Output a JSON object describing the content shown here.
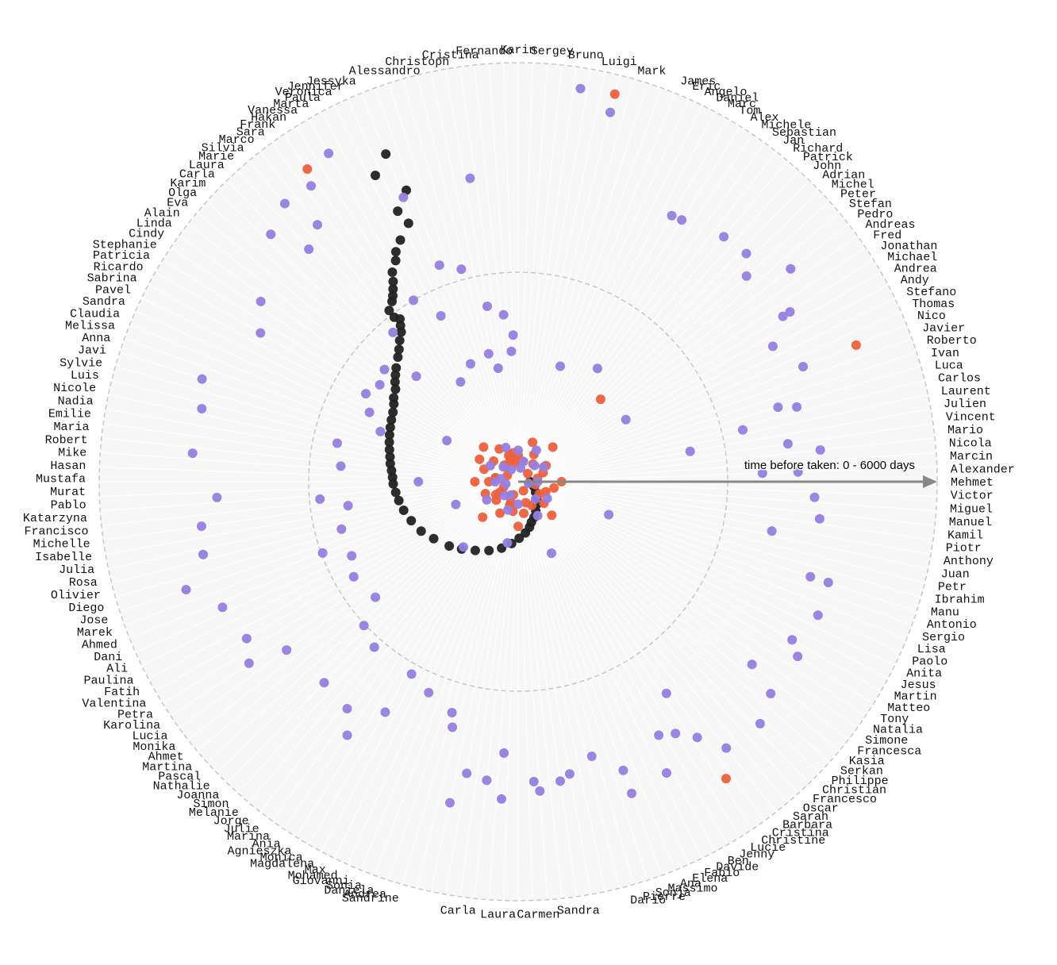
{
  "chart_data": {
    "type": "scatter",
    "subtype": "radial",
    "title": "",
    "radial_axis": {
      "label": "time before taken: 0 - 6000 days",
      "min": 0,
      "max": 6000,
      "rings": [
        3000,
        6000
      ],
      "ring_style": "dashed"
    },
    "legend": "none",
    "colors": {
      "series_black": "#222222",
      "series_orange": "#ee5f3a",
      "series_purple": "#9580e0",
      "ring": "#c8c8c8",
      "background_disk": "#f7f7f7",
      "axis_arrow": "#888888"
    },
    "angular_names_left": [
      "Jessyka",
      "Jennifer",
      "Veronica",
      "Paula",
      "Marta",
      "Vanessa",
      "Hakan",
      "Frank",
      "Sara",
      "Marco",
      "Silvia",
      "Marie",
      "Laura",
      "Carla",
      "Karim",
      "Olga",
      "Eva",
      "Alain",
      "Linda",
      "Cindy",
      "Stephanie",
      "Patricia",
      "Ricardo",
      "Sabrina",
      "Pavel",
      "Sandra",
      "Claudia",
      "Melissa",
      "Anna",
      "Javi",
      "Sylvie",
      "Luis",
      "Nicole",
      "Nadia",
      "Emilie",
      "Maria",
      "Robert",
      "Mike",
      "Hasan",
      "Mustafa",
      "Murat",
      "Pablo",
      "Katarzyna",
      "Francisco",
      "Michelle",
      "Isabelle",
      "Julia",
      "Rosa",
      "Olivier",
      "Diego",
      "Jose",
      "Marek",
      "Ahmed",
      "Dani",
      "Ali",
      "Paulina",
      "Fatih",
      "Valentina",
      "Petra",
      "Karolina",
      "Lucia",
      "Monika",
      "Ahmet",
      "Martina",
      "Pascal",
      "Nathalie",
      "Joanna",
      "Simon",
      "Melanie",
      "Jorge",
      "Julie",
      "Marina",
      "Ania",
      "Agnieszka",
      "Monica",
      "Magdalena",
      "Max",
      "Mohamed",
      "Giovanni",
      "Sonia",
      "Daniela",
      "Andrea",
      "Sandrine"
    ],
    "angular_names_right": [
      "James",
      "Eric",
      "Angelo",
      "Daniel",
      "Marc",
      "Tom",
      "Alex",
      "Michele",
      "Sebastian",
      "Jan",
      "Richard",
      "Patrick",
      "John",
      "Adrian",
      "Michel",
      "Peter",
      "Stefan",
      "Pedro",
      "Andreas",
      "Fred",
      "Jonathan",
      "Michael",
      "Andrea",
      "Andy",
      "Stefano",
      "Thomas",
      "Nico",
      "Javier",
      "Roberto",
      "Ivan",
      "Luca",
      "Carlos",
      "Laurent",
      "Julien",
      "Vincent",
      "Mario",
      "Nicola",
      "Marcin",
      "Alexander",
      "Mehmet",
      "Victor",
      "Miguel",
      "Manuel",
      "Kamil",
      "Piotr",
      "Anthony",
      "Juan",
      "Petr",
      "Ibrahim",
      "Manu",
      "Antonio",
      "Sergio",
      "Lisa",
      "Paolo",
      "Anita",
      "Jesus",
      "Martin",
      "Matteo",
      "Tony",
      "Natalia",
      "Simone",
      "Francesca",
      "Kasia",
      "Serkan",
      "Philippe",
      "Christian",
      "Francesco",
      "Oscar",
      "Sarah",
      "Barbara",
      "Cristina",
      "Christine",
      "Lucie",
      "Jenny",
      "Ben",
      "Davide",
      "Fabio",
      "Elena",
      "Ana",
      "Massimo",
      "Sonja",
      "Pierre",
      "Dario"
    ],
    "angular_names_top": [
      "Alessandro",
      "Christoph",
      "Cristina",
      "Fernando",
      "Karin",
      "Sergey",
      "Bruno",
      "Luigi",
      "Mark"
    ],
    "angular_names_bottom": [
      "Sandra",
      "Carmen",
      "Laura",
      "Carla"
    ],
    "series": [
      {
        "name": "",
        "color_key": "series_black",
        "points": [
          [
            -22,
            5060
          ],
          [
            -25,
            4840
          ],
          [
            -21,
            4470
          ],
          [
            -24,
            4240
          ],
          [
            -23,
            4020
          ],
          [
            -26,
            3850
          ],
          [
            -28,
            3730
          ],
          [
            -29,
            3620
          ],
          [
            -31,
            3500
          ],
          [
            -32,
            3380
          ],
          [
            -33,
            3290
          ],
          [
            -34,
            3210
          ],
          [
            -35,
            3150
          ],
          [
            -37,
            3070
          ],
          [
            -37,
            2950
          ],
          [
            -36,
            2880
          ],
          [
            -37,
            2800
          ],
          [
            -38,
            2720
          ],
          [
            -40,
            2640
          ],
          [
            -42,
            2550
          ],
          [
            -44,
            2480
          ],
          [
            -47,
            2390
          ],
          [
            -49,
            2330
          ],
          [
            -51,
            2270
          ],
          [
            -53,
            2200
          ],
          [
            -56,
            2150
          ],
          [
            -58,
            2100
          ],
          [
            -61,
            2050
          ],
          [
            -64,
            2020
          ],
          [
            -67,
            1990
          ],
          [
            -70,
            1960
          ],
          [
            -73,
            1930
          ],
          [
            -76,
            1900
          ],
          [
            -79,
            1870
          ],
          [
            -82,
            1850
          ],
          [
            -85,
            1820
          ],
          [
            -88,
            1800
          ],
          [
            -91,
            1790
          ],
          [
            -95,
            1760
          ],
          [
            -99,
            1730
          ],
          [
            -104,
            1690
          ],
          [
            -110,
            1630
          ],
          [
            -117,
            1560
          ],
          [
            -124,
            1460
          ],
          [
            -133,
            1350
          ],
          [
            -140,
            1260
          ],
          [
            -148,
            1160
          ],
          [
            -157,
            1070
          ],
          [
            -166,
            980
          ],
          [
            -174,
            890
          ],
          [
            -181,
            810
          ],
          [
            -188,
            740
          ],
          [
            -194,
            670
          ],
          [
            -198,
            610
          ],
          [
            -204,
            560
          ],
          [
            -211,
            490
          ],
          [
            -219,
            420
          ],
          [
            -228,
            360
          ],
          [
            -239,
            290
          ],
          [
            -254,
            230
          ],
          [
            -270,
            170
          ]
        ]
      },
      {
        "name": "",
        "color_key": "series_orange",
        "points": [
          [
            14,
            5720
          ],
          [
            -34,
            5400
          ],
          [
            68,
            5220
          ],
          [
            145,
            5190
          ],
          [
            45,
            1670
          ],
          [
            -20,
            330
          ],
          [
            10,
            300
          ],
          [
            40,
            330
          ],
          [
            80,
            280
          ],
          [
            120,
            350
          ],
          [
            160,
            320
          ],
          [
            200,
            360
          ],
          [
            240,
            300
          ],
          [
            280,
            330
          ],
          [
            320,
            310
          ],
          [
            350,
            270
          ],
          [
            -10,
            420
          ],
          [
            30,
            450
          ],
          [
            70,
            380
          ],
          [
            110,
            420
          ],
          [
            150,
            390
          ],
          [
            190,
            430
          ],
          [
            230,
            410
          ],
          [
            270,
            420
          ],
          [
            310,
            460
          ],
          [
            340,
            400
          ],
          [
            -40,
            280
          ],
          [
            -80,
            330
          ],
          [
            -120,
            370
          ],
          [
            -160,
            310
          ],
          [
            0,
            380
          ],
          [
            60,
            460
          ],
          [
            100,
            520
          ],
          [
            130,
            480
          ],
          [
            170,
            460
          ],
          [
            210,
            520
          ],
          [
            250,
            500
          ],
          [
            290,
            520
          ],
          [
            330,
            540
          ],
          [
            20,
            600
          ],
          [
            90,
            620
          ],
          [
            180,
            640
          ],
          [
            270,
            620
          ],
          [
            300,
            640
          ],
          [
            45,
            700
          ],
          [
            135,
            680
          ],
          [
            225,
            720
          ],
          [
            315,
            700
          ],
          [
            100,
            250
          ],
          [
            200,
            200
          ],
          [
            300,
            180
          ],
          [
            50,
            180
          ],
          [
            150,
            150
          ],
          [
            250,
            220
          ]
        ]
      },
      {
        "name": "",
        "color_key": "series_purple",
        "points": [
          [
            9,
            5700
          ],
          [
            14,
            5450
          ],
          [
            -30,
            5430
          ],
          [
            -35,
            5170
          ],
          [
            -40,
            5200
          ],
          [
            -45,
            5010
          ],
          [
            30,
            4400
          ],
          [
            -9,
            4400
          ],
          [
            -22,
            4390
          ],
          [
            -38,
            4670
          ],
          [
            -42,
            4480
          ],
          [
            -55,
            4500
          ],
          [
            -60,
            4260
          ],
          [
            -72,
            4760
          ],
          [
            -77,
            4650
          ],
          [
            -85,
            4680
          ],
          [
            -93,
            4320
          ],
          [
            -98,
            4580
          ],
          [
            -103,
            4630
          ],
          [
            -108,
            5000
          ],
          [
            -113,
            4600
          ],
          [
            -120,
            4490
          ],
          [
            -124,
            4650
          ],
          [
            -126,
            4100
          ],
          [
            -136,
            4000
          ],
          [
            -143,
            4070
          ],
          [
            -150,
            3810
          ],
          [
            -165,
            3640
          ],
          [
            -168,
            4700
          ],
          [
            -174,
            4300
          ],
          [
            -177,
            3890
          ],
          [
            -183,
            4300
          ],
          [
            -188,
            4330
          ],
          [
            -195,
            4070
          ],
          [
            -200,
            4750
          ],
          [
            -209,
            4150
          ],
          [
            -215,
            4470
          ],
          [
            -218,
            4840
          ],
          [
            -230,
            4720
          ],
          [
            -240,
            4530
          ],
          [
            -252,
            4670
          ],
          [
            -263,
            4350
          ],
          [
            -272,
            4010
          ],
          [
            -285,
            4130
          ],
          [
            -292,
            4400
          ],
          [
            -302,
            4590
          ],
          [
            -312,
            4400
          ],
          [
            -320,
            4580
          ],
          [
            -328,
            4420
          ],
          [
            45,
            4620
          ],
          [
            52,
            4950
          ],
          [
            58,
            4470
          ],
          [
            62,
            4130
          ],
          [
            74,
            3870
          ],
          [
            77,
            3300
          ],
          [
            80,
            2500
          ],
          [
            82,
            3900
          ],
          [
            84,
            4350
          ],
          [
            88,
            3500
          ],
          [
            93,
            4250
          ],
          [
            101,
            3700
          ],
          [
            108,
            4400
          ],
          [
            114,
            4700
          ],
          [
            122,
            4720
          ],
          [
            128,
            4250
          ],
          [
            135,
            4900
          ],
          [
            145,
            3700
          ],
          [
            148,
            4250
          ],
          [
            153,
            4680
          ],
          [
            160,
            4400
          ],
          [
            170,
            4250
          ],
          [
            176,
            4440
          ],
          [
            183,
            4550
          ],
          [
            190,
            4240
          ],
          [
            196,
            3440
          ],
          [
            203,
            3280
          ],
          [
            209,
            3150
          ],
          [
            214,
            4380
          ],
          [
            221,
            3140
          ],
          [
            227,
            3020
          ],
          [
            231,
            2630
          ],
          [
            240,
            2720
          ],
          [
            246,
            2610
          ],
          [
            250,
            2980
          ],
          [
            255,
            2620
          ],
          [
            262,
            2460
          ],
          [
            265,
            2850
          ],
          [
            275,
            2550
          ],
          [
            282,
            2650
          ],
          [
            290,
            2100
          ],
          [
            295,
            2350
          ],
          [
            300,
            2520
          ],
          [
            305,
            2420
          ],
          [
            310,
            2500
          ],
          [
            316,
            2100
          ],
          [
            320,
            2790
          ],
          [
            330,
            3000
          ],
          [
            335,
            2620
          ],
          [
            340,
            3300
          ],
          [
            345,
            3150
          ],
          [
            350,
            2550
          ],
          [
            355,
            2400
          ],
          [
            358,
            2100
          ],
          [
            338,
            1820
          ],
          [
            350,
            1650
          ],
          [
            357,
            1870
          ],
          [
            347,
            1880
          ],
          [
            20,
            1760
          ],
          [
            35,
            1980
          ],
          [
            60,
            1780
          ],
          [
            110,
            1380
          ],
          [
            155,
            1130
          ],
          [
            190,
            890
          ],
          [
            220,
            1220
          ],
          [
            250,
            950
          ],
          [
            270,
            1430
          ],
          [
            300,
            1180
          ],
          [
            330,
            1650
          ],
          [
            15,
            300
          ],
          [
            45,
            330
          ],
          [
            90,
            280
          ],
          [
            135,
            350
          ],
          [
            180,
            320
          ],
          [
            225,
            280
          ],
          [
            270,
            330
          ],
          [
            315,
            300
          ],
          [
            0,
            450
          ],
          [
            60,
            420
          ],
          [
            120,
            480
          ],
          [
            200,
            430
          ],
          [
            240,
            520
          ],
          [
            300,
            460
          ],
          [
            340,
            520
          ],
          [
            30,
            520
          ],
          [
            150,
            560
          ],
          [
            210,
            220
          ],
          [
            260,
            180
          ],
          [
            100,
            150
          ],
          [
            10,
            200
          ],
          [
            330,
            200
          ],
          [
            280,
            250
          ]
        ]
      }
    ]
  }
}
